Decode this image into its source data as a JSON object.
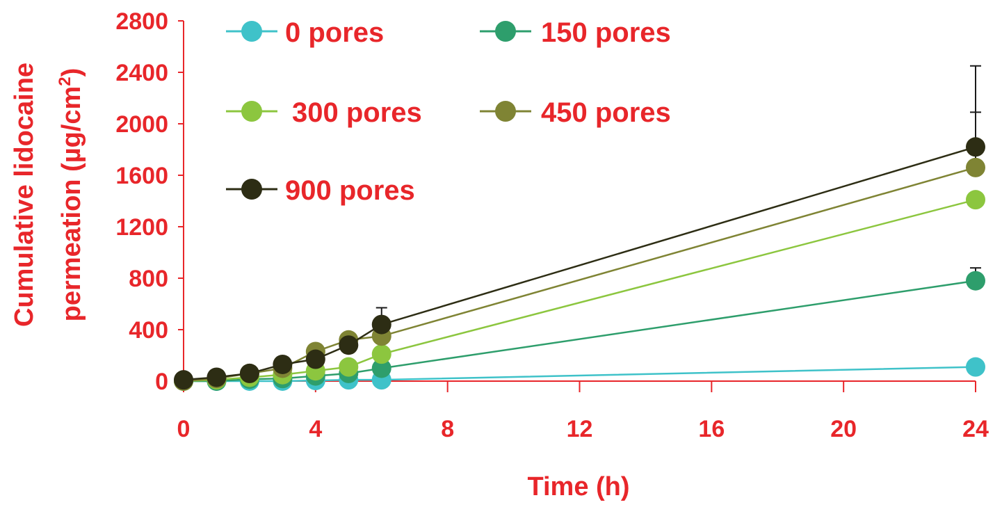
{
  "colors": {
    "axis": "#e8262a",
    "error_bar": "#1a1a1a"
  },
  "chart_data": {
    "type": "line",
    "title": "",
    "xlabel": "Time (h)",
    "ylabel_line1": "Cumulative lidocaine",
    "ylabel_line2_prefix": "permeation (µg/cm",
    "ylabel_line2_sup": "2",
    "ylabel_line2_suffix": ")",
    "xlim": [
      0,
      24
    ],
    "ylim": [
      0,
      2800
    ],
    "xticks": [
      0,
      4,
      8,
      12,
      16,
      20,
      24
    ],
    "yticks": [
      0,
      400,
      800,
      1200,
      1600,
      2000,
      2400,
      2800
    ],
    "xtick_labels": [
      "0",
      "4",
      "8",
      "12",
      "16",
      "20",
      "24"
    ],
    "ytick_labels": [
      "0",
      "400",
      "800",
      "1200",
      "1600",
      "2000",
      "2400",
      "2800"
    ],
    "grid": false,
    "legend_position": "top-left",
    "x": [
      0,
      1,
      2,
      3,
      4,
      5,
      6,
      24
    ],
    "series": [
      {
        "name": "0 pores",
        "color": "#3fc2c9",
        "values": [
          0,
          0,
          0,
          0,
          5,
          10,
          10,
          110
        ],
        "errors": [
          0,
          0,
          0,
          0,
          0,
          0,
          0,
          0
        ]
      },
      {
        "name": "150 pores",
        "color": "#2e9e6c",
        "values": [
          0,
          0,
          15,
          20,
          40,
          60,
          100,
          780
        ],
        "errors": [
          0,
          0,
          0,
          0,
          0,
          0,
          0,
          100
        ]
      },
      {
        "name": "300 pores",
        "color": "#8cc63f",
        "values": [
          0,
          10,
          30,
          50,
          80,
          110,
          210,
          1410
        ],
        "errors": [
          0,
          0,
          0,
          0,
          0,
          0,
          0,
          0
        ]
      },
      {
        "name": "450 pores",
        "color": "#7f8434",
        "values": [
          0,
          20,
          60,
          100,
          230,
          320,
          350,
          1660
        ],
        "errors": [
          0,
          0,
          0,
          0,
          0,
          0,
          0,
          430
        ]
      },
      {
        "name": "900 pores",
        "color": "#2d2d14",
        "values": [
          10,
          30,
          60,
          130,
          170,
          280,
          440,
          1820
        ],
        "errors": [
          0,
          0,
          0,
          0,
          0,
          0,
          130,
          630
        ]
      }
    ]
  }
}
